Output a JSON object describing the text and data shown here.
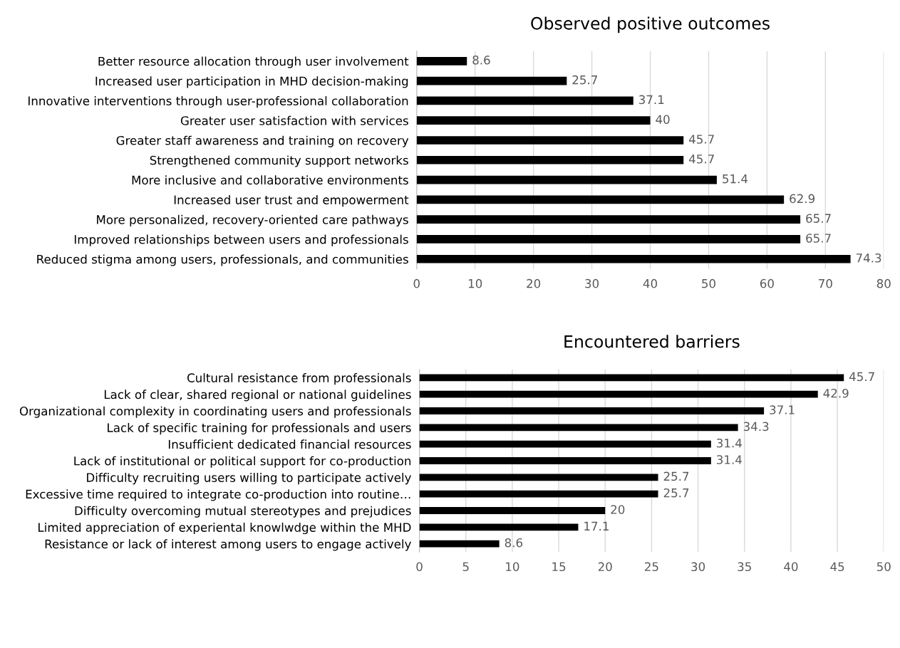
{
  "chart_data": [
    {
      "type": "bar",
      "orientation": "horizontal",
      "title": "Observed positive outcomes",
      "categories": [
        "Better resource allocation through user involvement",
        "Increased user participation in MHD decision-making",
        "Innovative interventions through user-professional collaboration",
        "Greater user satisfaction with services",
        "Greater staff awareness and training on recovery",
        "Strengthened community support networks",
        "More inclusive and collaborative environments",
        "Increased user trust and empowerment",
        "More personalized, recovery-oriented care pathways",
        "Improved relationships between users and professionals",
        "Reduced stigma among users, professionals, and communities"
      ],
      "values": [
        8.6,
        25.7,
        37.1,
        40,
        45.7,
        45.7,
        51.4,
        62.9,
        65.7,
        65.7,
        74.3
      ],
      "color": "#000000",
      "data_labels": true,
      "grid": "x",
      "xlim": [
        0,
        80
      ],
      "xticks": [
        0,
        10,
        20,
        30,
        40,
        50,
        60,
        70,
        80
      ]
    },
    {
      "type": "bar",
      "orientation": "horizontal",
      "title": "Encountered barriers",
      "categories": [
        "Cultural resistance from professionals",
        "Lack of clear, shared regional or national guidelines",
        "Organizational complexity in coordinating users and professionals",
        "Lack of specific training for professionals and users",
        "Insufficient dedicated financial resources",
        "Lack of institutional or political support for co-production",
        "Difficulty recruiting users willing to participate actively",
        "Excessive time required to integrate co-production into routine…",
        "Difficulty overcoming mutual stereotypes and prejudices",
        "Limited appreciation of experiental knowlwdge within the MHD",
        "Resistance or lack of interest among users to engage actively"
      ],
      "values": [
        45.7,
        42.9,
        37.1,
        34.3,
        31.4,
        31.4,
        25.7,
        25.7,
        20,
        17.1,
        8.6
      ],
      "color": "#000000",
      "data_labels": true,
      "grid": "x",
      "xlim": [
        0,
        50
      ],
      "xticks": [
        0,
        5,
        10,
        15,
        20,
        25,
        30,
        35,
        40,
        45,
        50
      ]
    }
  ]
}
